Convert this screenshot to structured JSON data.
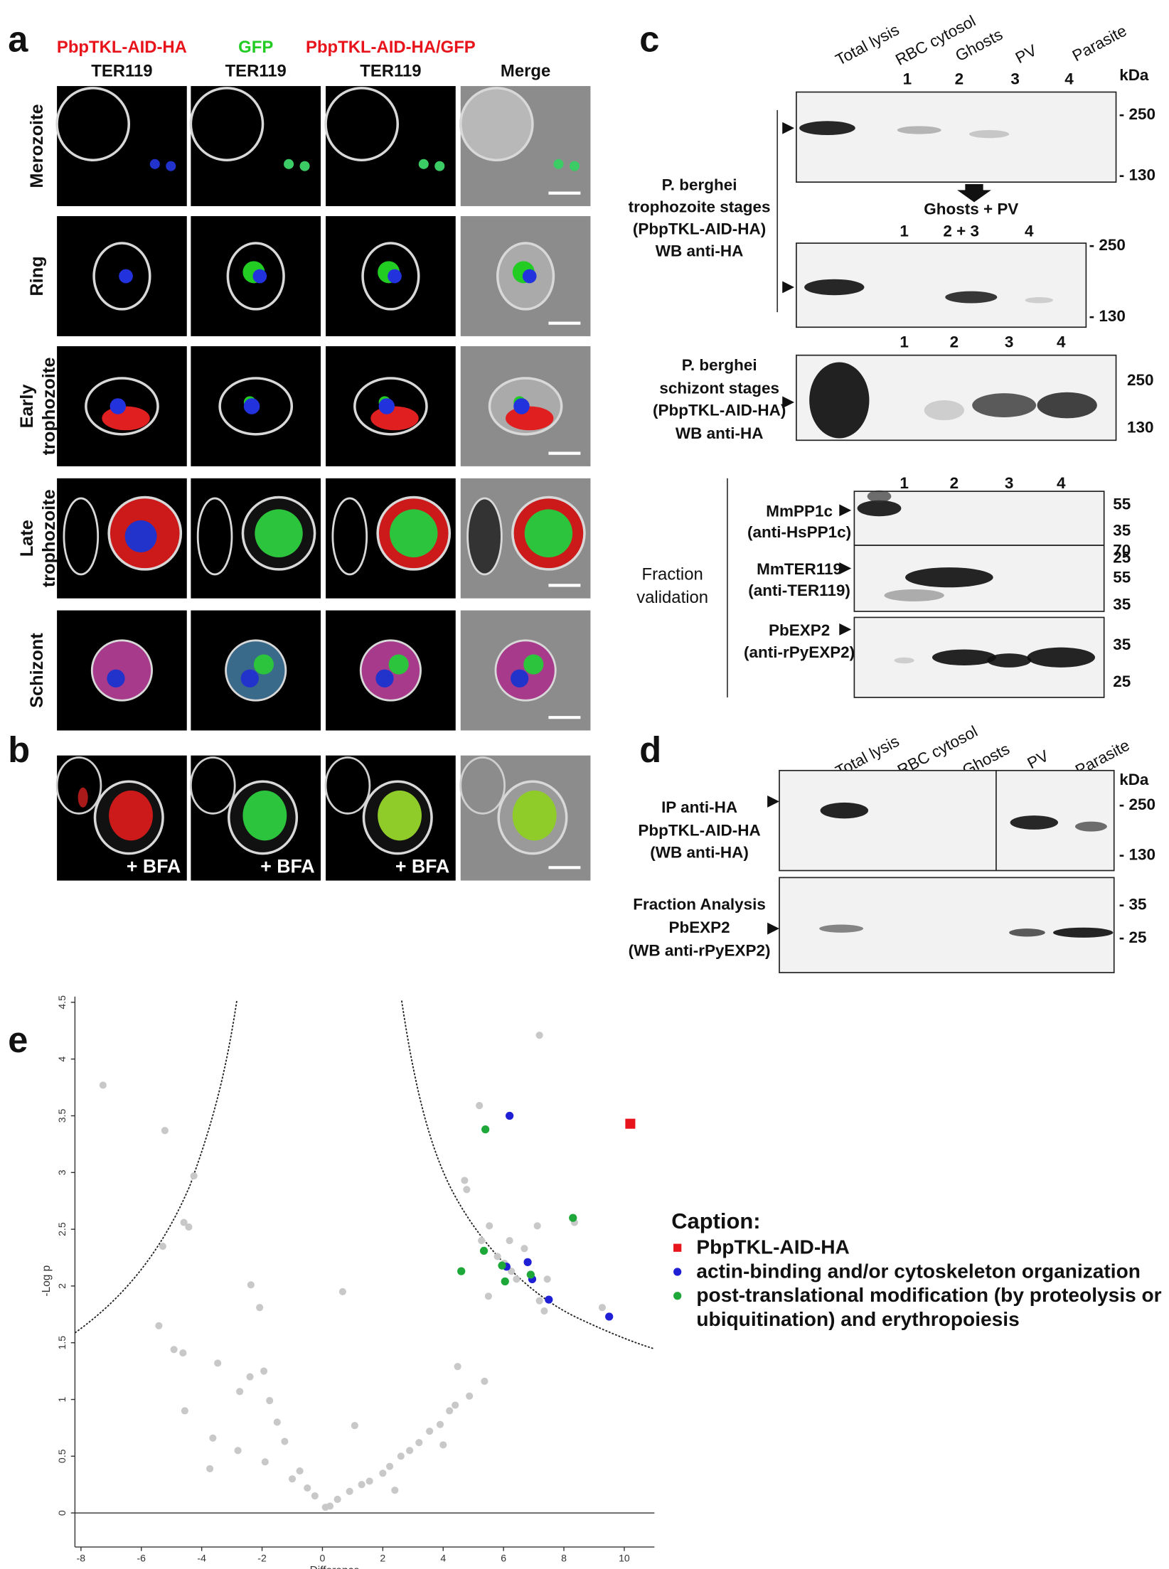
{
  "panel_a": {
    "label": "a",
    "columns": [
      {
        "line1": "PbpTKL-AID-HA",
        "line2": "TER119"
      },
      {
        "line1": "GFP",
        "line2": "TER119"
      },
      {
        "line1": "PbpTKL-AID-HA/GFP",
        "line2": "TER119"
      },
      {
        "line1": "Merge"
      }
    ],
    "rows": [
      [
        "Merozoite"
      ],
      [
        "Ring"
      ],
      [
        "Early",
        "trophozoite"
      ],
      [
        "Late",
        "trophozoite"
      ],
      [
        "Schizont"
      ]
    ]
  },
  "panel_b": {
    "label": "b",
    "treatment": [
      "+ BFA",
      "+ BFA",
      "+ BFA"
    ]
  },
  "panel_c": {
    "label": "c",
    "lanes": [
      "Total lysis",
      "RBC cytosol",
      "Ghosts",
      "PV",
      "Parasite"
    ],
    "unit": "kDa",
    "blots": [
      {
        "lane_numbers": [
          "1",
          "2",
          "3",
          "4"
        ],
        "markers": [
          "- 250",
          "- 130"
        ]
      },
      {
        "lane_numbers": [
          "1",
          "2 + 3",
          "4"
        ],
        "markers": [
          "- 250",
          "- 130"
        ]
      },
      {
        "lane_numbers": [
          "1",
          "2",
          "3",
          "4"
        ],
        "markers": [
          "250",
          "130"
        ],
        "label": [
          "P. berghei",
          "schizont stages",
          "(PbpTKL-AID-HA)",
          "WB anti-HA"
        ]
      }
    ],
    "merge_note": "Ghosts + PV",
    "trophozoite_label": [
      "P. berghei",
      "trophozoite stages",
      "(PbpTKL-AID-HA)",
      "WB anti-HA"
    ],
    "validation": {
      "lane_numbers": [
        "1",
        "2",
        "3",
        "4"
      ],
      "group_label": [
        "Fraction",
        "validation"
      ],
      "blots": [
        {
          "label": [
            "MmPP1c",
            "(anti-HsPP1c)"
          ],
          "markers": [
            "55",
            "35",
            "25"
          ]
        },
        {
          "label": [
            "MmTER119",
            "(anti-TER119)"
          ],
          "markers": [
            "70",
            "55",
            "35"
          ]
        },
        {
          "label": [
            "PbEXP2",
            "(anti-rPyEXP2)"
          ],
          "markers": [
            "35",
            "25"
          ]
        }
      ]
    }
  },
  "panel_d": {
    "label": "d",
    "lanes": [
      "Total lysis",
      "RBC cytosol",
      "Ghosts",
      "PV",
      "Parasite"
    ],
    "unit": "kDa",
    "blots": [
      {
        "label": [
          "IP anti-HA",
          "PbpTKL-AID-HA",
          "(WB anti-HA)"
        ],
        "markers": [
          "- 250",
          "- 130"
        ]
      },
      {
        "label": [
          "Fraction Analysis",
          "PbEXP2",
          "(WB anti-rPyEXP2)"
        ],
        "markers": [
          "- 35",
          "- 25"
        ]
      }
    ]
  },
  "panel_e": {
    "label": "e"
  },
  "chart_data": {
    "type": "scatter",
    "x_label": "Difference",
    "y_label": "-Log p",
    "xlim": [
      -8.2,
      11
    ],
    "ylim": [
      -0.3,
      4.55
    ],
    "xticks": [
      -8,
      -6,
      -4,
      -2,
      0,
      2,
      4,
      6,
      8,
      10
    ],
    "yticks": [
      0,
      0.5,
      1,
      1.5,
      2,
      2.5,
      3,
      3.5,
      4,
      4.5
    ],
    "grid": false,
    "legend_title": "Caption:",
    "series": [
      {
        "color": "#c8c8c8",
        "x": [
          -7.27,
          -5.22,
          -4.26,
          -4.59,
          -4.43,
          -5.29,
          -2.37,
          -2.08,
          -5.42,
          -4.92,
          -4.62,
          -3.47,
          0.67,
          -4.56,
          -3.63,
          -3.73,
          -2.74,
          -1.94,
          -1.75,
          -1.25,
          -0.75,
          -0.25,
          0.25,
          0.9,
          1.56,
          2.23,
          2.89,
          3.55,
          4.21,
          4.87,
          5.37,
          4.48,
          4.71,
          4.78,
          5.2,
          5.53,
          5.27,
          5.8,
          6.03,
          6.26,
          5.5,
          6.43,
          7.12,
          7.19,
          6.2,
          6.69,
          7.45,
          7.35,
          8.35,
          9.27,
          7.19,
          1.07,
          -2.8,
          -1.9,
          -1.0,
          0.1,
          0.5,
          1.3,
          2.0,
          2.6,
          3.2,
          3.9,
          4.4,
          4.0,
          2.4,
          -0.5,
          -2.4,
          -1.5
        ],
        "values": [
          3.77,
          3.37,
          2.97,
          2.56,
          2.52,
          2.35,
          2.01,
          1.81,
          1.65,
          1.44,
          1.41,
          1.32,
          1.95,
          0.9,
          0.66,
          0.39,
          1.07,
          1.25,
          0.99,
          0.63,
          0.37,
          0.15,
          0.06,
          0.19,
          0.28,
          0.41,
          0.55,
          0.72,
          0.9,
          1.03,
          1.16,
          1.29,
          2.93,
          2.85,
          3.59,
          2.53,
          2.4,
          2.26,
          2.2,
          2.13,
          1.91,
          2.06,
          2.53,
          4.21,
          2.4,
          2.33,
          2.06,
          1.78,
          2.56,
          1.81,
          1.87,
          0.77,
          0.55,
          0.45,
          0.3,
          0.05,
          0.12,
          0.25,
          0.35,
          0.5,
          0.62,
          0.78,
          0.95,
          0.6,
          0.2,
          0.22,
          1.2,
          0.8
        ]
      },
      {
        "name": "PbpTKL-AID-HA",
        "color": "#e8141c",
        "marker": "square",
        "x": [
          10.2
        ],
        "values": [
          3.43
        ]
      },
      {
        "name": "actin-binding and/or cytoskeleton organization",
        "color": "#1f1fd6",
        "x": [
          6.2,
          6.1,
          6.8,
          6.95,
          7.5,
          9.5
        ],
        "values": [
          3.5,
          2.17,
          2.21,
          2.06,
          1.88,
          1.73
        ]
      },
      {
        "name": "post-translational modification (by proteolysis or ubiquitination) and erythropoiesis",
        "color": "#1fa83a",
        "x": [
          5.4,
          5.35,
          4.6,
          5.95,
          6.05,
          6.9,
          8.3
        ],
        "values": [
          3.38,
          2.31,
          2.13,
          2.18,
          2.04,
          2.1,
          2.6
        ]
      }
    ]
  }
}
